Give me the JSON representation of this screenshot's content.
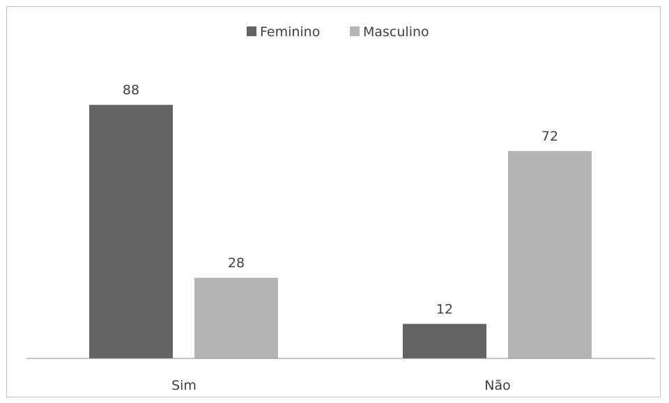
{
  "chart_data": {
    "type": "bar",
    "categories": [
      "Sim",
      "Não"
    ],
    "series": [
      {
        "name": "Feminino",
        "values": [
          88,
          12
        ],
        "color": "#636363"
      },
      {
        "name": "Masculino",
        "values": [
          28,
          72
        ],
        "color": "#b5b5b5"
      }
    ],
    "title": "",
    "xlabel": "",
    "ylabel": "",
    "ylim": [
      0,
      100
    ],
    "grid": false,
    "legend_position": "top-center",
    "data_labels": true
  }
}
